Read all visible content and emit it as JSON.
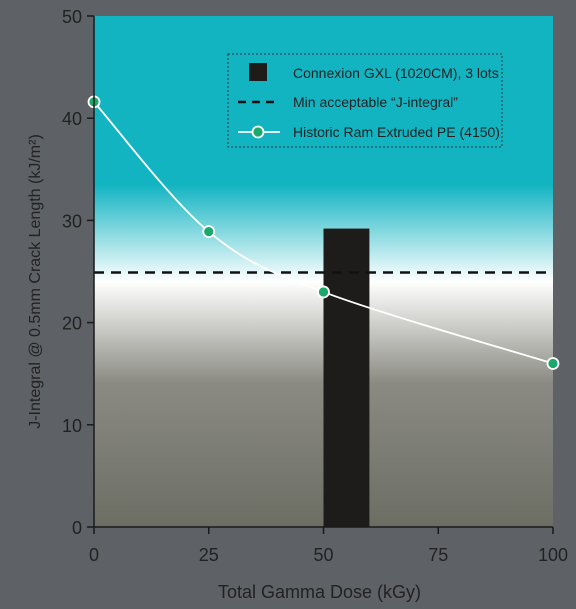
{
  "colors": {
    "background": "#5e6165",
    "plot_top": "#12b4c2",
    "plot_mid": "#ffffff",
    "plot_bottom": "#6c6e64",
    "bar": "#1d1c1b",
    "line": "#ffffff",
    "marker_fill": "#1aa86b",
    "text": "#222222",
    "legend_border": "#2f3a3c"
  },
  "chart_data": {
    "type": "line",
    "title": "",
    "xlabel": "Total Gamma Dose (kGy)",
    "ylabel": "J-Integral @ 0.5mm Crack Length (kJ/m²)",
    "xlim": [
      0,
      100
    ],
    "ylim": [
      0,
      50
    ],
    "x_ticks": [
      0,
      25,
      50,
      75,
      100
    ],
    "y_ticks": [
      0,
      10,
      20,
      30,
      40,
      50
    ],
    "grid": false,
    "legend_position": "top-right",
    "series": [
      {
        "name": "Historic Ram Extruded PE (4150)",
        "type": "line",
        "x": [
          0,
          25,
          50,
          100
        ],
        "y": [
          41.6,
          28.9,
          23.0,
          16.0
        ]
      },
      {
        "name": "Connexion GXL (1020CM), 3 lots",
        "type": "bar",
        "x": [
          55
        ],
        "y": [
          29.2
        ],
        "bar_width": 10
      },
      {
        "name": "Min acceptable “J-integral”",
        "type": "hline",
        "y": 24.9
      }
    ]
  }
}
